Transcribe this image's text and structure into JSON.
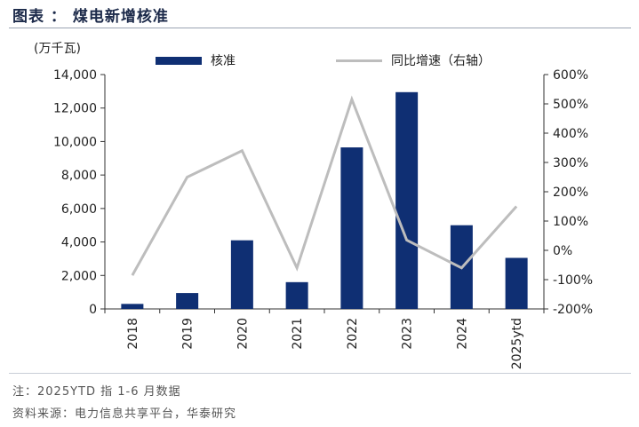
{
  "header": {
    "title": "图表 ： 煤电新增核准"
  },
  "unit_label": "(万千瓦)",
  "legend": {
    "bar_label": "核准",
    "line_label": "同比增速（右轴）"
  },
  "notes": {
    "note": "注：2025YTD 指 1-6 月数据",
    "source": "资料来源：电力信息共享平台，华泰研究"
  },
  "colors": {
    "bar": "#0f2f73",
    "line": "#bdbdbd",
    "axis": "#333333"
  },
  "chart_data": {
    "type": "bar",
    "categories": [
      "2018",
      "2019",
      "2020",
      "2021",
      "2022",
      "2023",
      "2024",
      "2025ytd"
    ],
    "series": [
      {
        "name": "核准",
        "type": "bar",
        "axis": "left",
        "values": [
          300,
          950,
          4100,
          1600,
          9650,
          12950,
          5000,
          3050
        ]
      },
      {
        "name": "同比增速（右轴）",
        "type": "line",
        "axis": "right",
        "values": [
          -85,
          250,
          340,
          -60,
          515,
          35,
          -60,
          150
        ]
      }
    ],
    "y_left": {
      "min": 0,
      "max": 14000,
      "ticks": [
        0,
        2000,
        4000,
        6000,
        8000,
        10000,
        12000,
        14000
      ],
      "tick_labels": [
        "0",
        "2,000",
        "4,000",
        "6,000",
        "8,000",
        "10,000",
        "12,000",
        "14,000"
      ]
    },
    "y_right": {
      "min": -200,
      "max": 600,
      "ticks": [
        -200,
        -100,
        0,
        100,
        200,
        300,
        400,
        500,
        600
      ],
      "tick_labels": [
        "-200%",
        "-100%",
        "0%",
        "100%",
        "200%",
        "300%",
        "400%",
        "500%",
        "600%"
      ]
    },
    "grid": false,
    "legend_position": "top"
  }
}
